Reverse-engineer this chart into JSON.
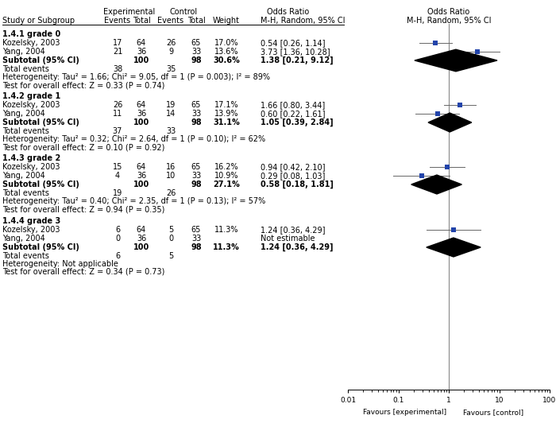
{
  "groups": [
    {
      "label": "1.4.1 grade 0",
      "studies": [
        {
          "name": "Kozelsky, 2003",
          "exp_events": 17,
          "exp_total": 64,
          "ctrl_events": 26,
          "ctrl_total": 65,
          "weight": "17.0%",
          "or": 0.54,
          "ci_low": 0.26,
          "ci_high": 1.14,
          "or_text": "0.54 [0.26, 1.14]"
        },
        {
          "name": "Yang, 2004",
          "exp_events": 21,
          "exp_total": 36,
          "ctrl_events": 9,
          "ctrl_total": 33,
          "weight": "13.6%",
          "or": 3.73,
          "ci_low": 1.36,
          "ci_high": 10.28,
          "or_text": "3.73 [1.36, 10.28]"
        }
      ],
      "subtotal": {
        "exp_total": 100,
        "ctrl_total": 98,
        "weight": "30.6%",
        "or": 1.38,
        "ci_low": 0.21,
        "ci_high": 9.12,
        "or_text": "1.38 [0.21, 9.12]"
      },
      "total_events": {
        "exp": 38,
        "ctrl": 35
      },
      "heterogeneity": "Heterogeneity: Tau² = 1.66; Chi² = 9.05, df = 1 (P = 0.003); I² = 89%",
      "overall": "Test for overall effect: Z = 0.33 (P = 0.74)"
    },
    {
      "label": "1.4.2 grade 1",
      "studies": [
        {
          "name": "Kozelsky, 2003",
          "exp_events": 26,
          "exp_total": 64,
          "ctrl_events": 19,
          "ctrl_total": 65,
          "weight": "17.1%",
          "or": 1.66,
          "ci_low": 0.8,
          "ci_high": 3.44,
          "or_text": "1.66 [0.80, 3.44]"
        },
        {
          "name": "Yang, 2004",
          "exp_events": 11,
          "exp_total": 36,
          "ctrl_events": 14,
          "ctrl_total": 33,
          "weight": "13.9%",
          "or": 0.6,
          "ci_low": 0.22,
          "ci_high": 1.61,
          "or_text": "0.60 [0.22, 1.61]"
        }
      ],
      "subtotal": {
        "exp_total": 100,
        "ctrl_total": 98,
        "weight": "31.1%",
        "or": 1.05,
        "ci_low": 0.39,
        "ci_high": 2.84,
        "or_text": "1.05 [0.39, 2.84]"
      },
      "total_events": {
        "exp": 37,
        "ctrl": 33
      },
      "heterogeneity": "Heterogeneity: Tau² = 0.32; Chi² = 2.64, df = 1 (P = 0.10); I² = 62%",
      "overall": "Test for overall effect: Z = 0.10 (P = 0.92)"
    },
    {
      "label": "1.4.3 grade 2",
      "studies": [
        {
          "name": "Kozelsky, 2003",
          "exp_events": 15,
          "exp_total": 64,
          "ctrl_events": 16,
          "ctrl_total": 65,
          "weight": "16.2%",
          "or": 0.94,
          "ci_low": 0.42,
          "ci_high": 2.1,
          "or_text": "0.94 [0.42, 2.10]"
        },
        {
          "name": "Yang, 2004",
          "exp_events": 4,
          "exp_total": 36,
          "ctrl_events": 10,
          "ctrl_total": 33,
          "weight": "10.9%",
          "or": 0.29,
          "ci_low": 0.08,
          "ci_high": 1.03,
          "or_text": "0.29 [0.08, 1.03]"
        }
      ],
      "subtotal": {
        "exp_total": 100,
        "ctrl_total": 98,
        "weight": "27.1%",
        "or": 0.58,
        "ci_low": 0.18,
        "ci_high": 1.81,
        "or_text": "0.58 [0.18, 1.81]"
      },
      "total_events": {
        "exp": 19,
        "ctrl": 26
      },
      "heterogeneity": "Heterogeneity: Tau² = 0.40; Chi² = 2.35, df = 1 (P = 0.13); I² = 57%",
      "overall": "Test for overall effect: Z = 0.94 (P = 0.35)"
    },
    {
      "label": "1.4.4 grade 3",
      "studies": [
        {
          "name": "Kozelsky, 2003",
          "exp_events": 6,
          "exp_total": 64,
          "ctrl_events": 5,
          "ctrl_total": 65,
          "weight": "11.3%",
          "or": 1.24,
          "ci_low": 0.36,
          "ci_high": 4.29,
          "or_text": "1.24 [0.36, 4.29]"
        },
        {
          "name": "Yang, 2004",
          "exp_events": 0,
          "exp_total": 36,
          "ctrl_events": 0,
          "ctrl_total": 33,
          "weight": "",
          "or": null,
          "ci_low": null,
          "ci_high": null,
          "or_text": "Not estimable"
        }
      ],
      "subtotal": {
        "exp_total": 100,
        "ctrl_total": 98,
        "weight": "11.3%",
        "or": 1.24,
        "ci_low": 0.36,
        "ci_high": 4.29,
        "or_text": "1.24 [0.36, 4.29]"
      },
      "total_events": {
        "exp": 6,
        "ctrl": 5
      },
      "heterogeneity": "Heterogeneity: Not applicable",
      "overall": "Test for overall effect: Z = 0.34 (P = 0.73)"
    }
  ],
  "xscale_min": 0.01,
  "xscale_max": 100,
  "axis_labels": [
    "0.01",
    "0.1",
    "1",
    "10",
    "100"
  ],
  "axis_values": [
    0.01,
    0.1,
    1,
    10,
    100
  ],
  "favours_left": "Favours [experimental]",
  "favours_right": "Favours [control]",
  "bg_color": "#ffffff",
  "text_color": "#000000",
  "study_color": "#2244aa",
  "line_color": "#666666",
  "diamond_color": "#000000",
  "fs": 7.0,
  "fs_header": 7.0
}
